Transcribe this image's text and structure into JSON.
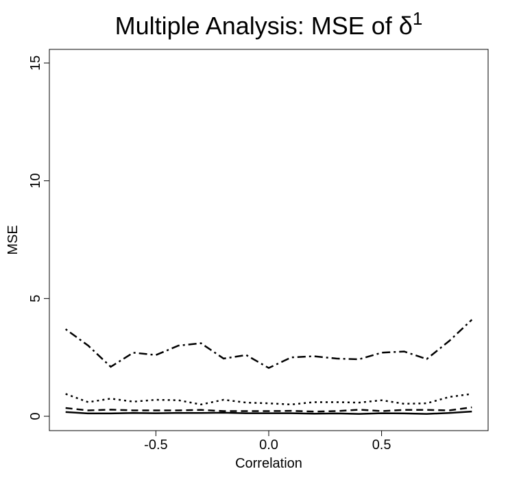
{
  "chart_data": {
    "type": "line",
    "title": "Multiple Analysis: MSE of δ",
    "title_superscript": "1",
    "x_label": "Correlation",
    "y_label": "MSE",
    "x": [
      -0.9,
      -0.8,
      -0.7,
      -0.6,
      -0.5,
      -0.4,
      -0.3,
      -0.2,
      -0.1,
      0.0,
      0.1,
      0.2,
      0.3,
      0.4,
      0.5,
      0.6,
      0.7,
      0.8,
      0.9
    ],
    "series": [
      {
        "color": "#000000",
        "dash": "solid",
        "values": [
          0.18,
          0.12,
          0.12,
          0.14,
          0.13,
          0.14,
          0.14,
          0.15,
          0.13,
          0.13,
          0.13,
          0.11,
          0.12,
          0.1,
          0.13,
          0.12,
          0.1,
          0.14,
          0.2
        ]
      },
      {
        "color": "#000000",
        "dash": "dashed",
        "values": [
          0.35,
          0.25,
          0.28,
          0.25,
          0.25,
          0.25,
          0.27,
          0.22,
          0.22,
          0.22,
          0.23,
          0.2,
          0.22,
          0.28,
          0.22,
          0.27,
          0.27,
          0.25,
          0.38
        ]
      },
      {
        "color": "#000000",
        "dash": "dotted",
        "values": [
          0.95,
          0.6,
          0.75,
          0.62,
          0.7,
          0.68,
          0.5,
          0.7,
          0.58,
          0.55,
          0.5,
          0.6,
          0.6,
          0.58,
          0.68,
          0.53,
          0.55,
          0.82,
          0.95
        ]
      },
      {
        "color": "#000000",
        "dash": "dotdash",
        "values": [
          3.7,
          3.0,
          2.1,
          2.7,
          2.6,
          3.0,
          3.1,
          2.45,
          2.6,
          2.05,
          2.5,
          2.55,
          2.45,
          2.42,
          2.7,
          2.75,
          2.43,
          3.2,
          4.1
        ]
      }
    ],
    "xlim": [
      -0.972,
      0.972
    ],
    "ylim": [
      -0.61,
      15.58
    ],
    "xticks": [
      -0.5,
      {
        "value": 0,
        "label": "0.0"
      },
      0.5
    ],
    "yticks": [
      0,
      5,
      10,
      15
    ]
  }
}
